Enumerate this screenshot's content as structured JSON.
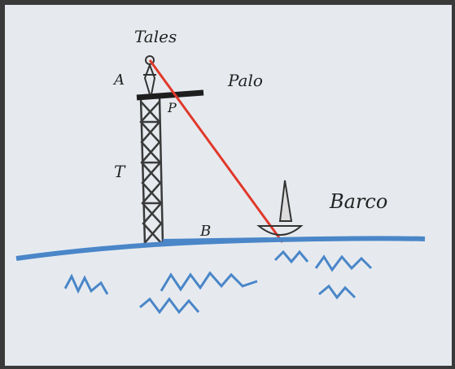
{
  "labels": {
    "observer": "Tales",
    "eye": "A",
    "pole": "Palo",
    "pole_point": "P",
    "tower": "T",
    "base": "B",
    "boat": "Barco"
  }
}
